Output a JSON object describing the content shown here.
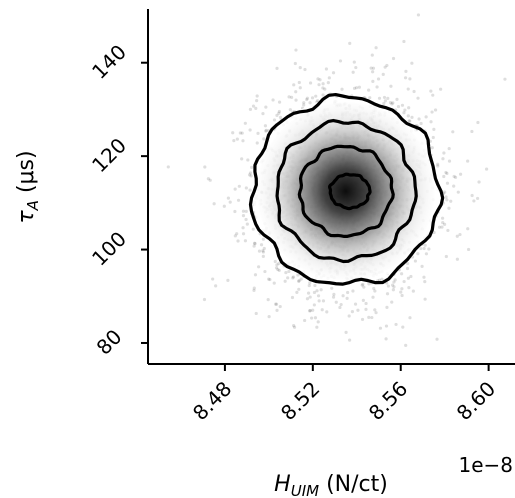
{
  "chart_data": {
    "type": "scatter",
    "title": "",
    "xlabel_main": "H",
    "xlabel_sub": "UIM",
    "xlabel_unit": " (N/ct)",
    "ylabel_main": "τ",
    "ylabel_sub": "A",
    "ylabel_unit": " (μs)",
    "x_offset_text": "1e−8",
    "x_scale": 1e-08,
    "xlim": [
      8.445,
      8.612
    ],
    "ylim": [
      75.5,
      151.5
    ],
    "x_ticks": [
      8.48,
      8.52,
      8.56,
      8.6
    ],
    "x_tick_labels": [
      "8.48",
      "8.52",
      "8.56",
      "8.60"
    ],
    "y_ticks": [
      80,
      100,
      120,
      140
    ],
    "y_tick_labels": [
      "80",
      "100",
      "120",
      "140"
    ],
    "center": {
      "x": 8.535,
      "y": 112.5
    },
    "spread": {
      "x_sd": 0.02,
      "y_sd": 11.0
    },
    "point_color": "#000000",
    "contours": [
      {
        "level": "outer",
        "rx": 0.0425,
        "ry": 20.0
      },
      {
        "level": "second",
        "rx": 0.0315,
        "ry": 14.8
      },
      {
        "level": "third",
        "rx": 0.021,
        "ry": 9.6
      },
      {
        "level": "inner",
        "rx": 0.009,
        "ry": 3.6
      }
    ],
    "grid": false,
    "legend": "none"
  }
}
